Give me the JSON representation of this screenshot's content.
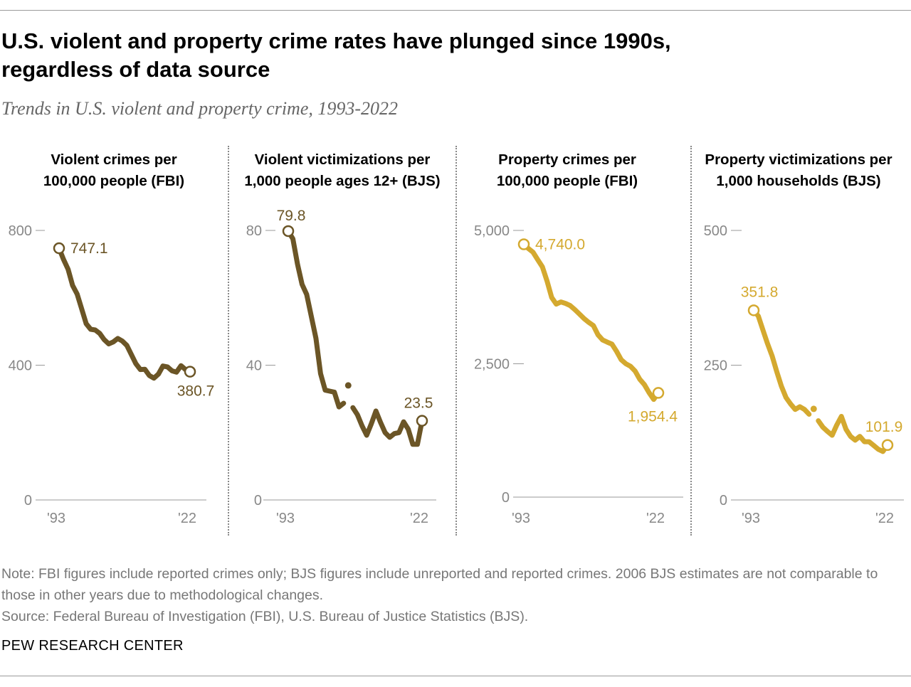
{
  "title": "U.S. violent and property crime rates have plunged since 1990s, regardless of data source",
  "subtitle": "Trends in U.S. violent and property crime, 1993-2022",
  "note": "Note: FBI figures include reported crimes only; BJS figures include unreported and reported crimes. 2006 BJS estimates are not comparable to those in other years due to methodological changes.",
  "source": "Source: Federal Bureau of Investigation (FBI), U.S. Bureau of Justice Statistics (BJS).",
  "brand": "PEW RESEARCH CENTER",
  "colors": {
    "violent": "#6b5526",
    "property": "#d4a92f",
    "axis": "#777777"
  },
  "chart_data": [
    {
      "type": "line",
      "title_line1": "Violent crimes per",
      "title_line2": "100,000 people (FBI)",
      "color": "#6b5526",
      "ylim": [
        0,
        800
      ],
      "yticks": [
        "0",
        "400",
        "800"
      ],
      "ytick_values": [
        0,
        400,
        800
      ],
      "xtick_labels": [
        "'93",
        "'22"
      ],
      "x": [
        1993,
        1994,
        1995,
        1996,
        1997,
        1998,
        1999,
        2000,
        2001,
        2002,
        2003,
        2004,
        2005,
        2006,
        2007,
        2008,
        2009,
        2010,
        2011,
        2012,
        2013,
        2014,
        2015,
        2016,
        2017,
        2018,
        2019,
        2020,
        2021,
        2022
      ],
      "values": [
        747.1,
        713.6,
        684.5,
        636.6,
        611.0,
        567.6,
        523.0,
        506.5,
        504.5,
        494.4,
        475.8,
        463.2,
        469.0,
        479.3,
        471.8,
        458.6,
        431.9,
        404.5,
        387.1,
        387.8,
        369.1,
        361.6,
        373.7,
        397.5,
        394.9,
        383.4,
        379.4,
        398.5,
        387.0,
        380.7
      ],
      "break_year": null,
      "start_label": "747.1",
      "end_label": "380.7"
    },
    {
      "type": "line",
      "title_line1": "Violent victimizations per",
      "title_line2": "1,000 people ages 12+ (BJS)",
      "color": "#6b5526",
      "ylim": [
        0,
        80
      ],
      "yticks": [
        "0",
        "40",
        "80"
      ],
      "ytick_values": [
        0,
        40,
        80
      ],
      "xtick_labels": [
        "'93",
        "'22"
      ],
      "x": [
        1993,
        1994,
        1995,
        1996,
        1997,
        1998,
        1999,
        2000,
        2001,
        2002,
        2003,
        2004,
        2005,
        2006,
        2007,
        2008,
        2009,
        2010,
        2011,
        2012,
        2013,
        2014,
        2015,
        2016,
        2017,
        2018,
        2019,
        2020,
        2021,
        2022
      ],
      "values": [
        79.8,
        77.5,
        70.0,
        64.0,
        61.0,
        54.5,
        48.0,
        37.5,
        32.6,
        32.3,
        32.0,
        27.6,
        28.7,
        34.0,
        27.4,
        25.3,
        22.0,
        19.2,
        22.6,
        26.4,
        23.0,
        20.0,
        18.6,
        19.7,
        20.0,
        23.2,
        21.0,
        16.5,
        16.5,
        23.5
      ],
      "break_year": 2006,
      "start_label": "79.8",
      "end_label": "23.5"
    },
    {
      "type": "line",
      "title_line1": "Property crimes per",
      "title_line2": "100,000 people (FBI)",
      "color": "#d4a92f",
      "ylim": [
        0,
        5000
      ],
      "yticks": [
        "0",
        "2,500",
        "5,000"
      ],
      "ytick_values": [
        0,
        2500,
        5000
      ],
      "xtick_labels": [
        "'93",
        "'22"
      ],
      "x": [
        1993,
        1994,
        1995,
        1996,
        1997,
        1998,
        1999,
        2000,
        2001,
        2002,
        2003,
        2004,
        2005,
        2006,
        2007,
        2008,
        2009,
        2010,
        2011,
        2012,
        2013,
        2014,
        2015,
        2016,
        2017,
        2018,
        2019,
        2020,
        2021,
        2022
      ],
      "values": [
        4740.0,
        4660.2,
        4590.5,
        4451.0,
        4316.3,
        4052.5,
        3743.6,
        3618.3,
        3658.1,
        3630.6,
        3591.2,
        3514.1,
        3431.5,
        3346.6,
        3276.4,
        3214.6,
        3041.3,
        2945.9,
        2905.4,
        2868.0,
        2733.6,
        2574.1,
        2500.5,
        2451.6,
        2362.2,
        2209.8,
        2109.9,
        1958.2,
        1832.3,
        1954.4
      ],
      "break_year": null,
      "start_label": "4,740.0",
      "end_label": "1,954.4"
    },
    {
      "type": "line",
      "title_line1": "Property victimizations per",
      "title_line2": "1,000 households (BJS)",
      "color": "#d4a92f",
      "ylim": [
        0,
        500
      ],
      "yticks": [
        "0",
        "250",
        "500"
      ],
      "ytick_values": [
        0,
        250,
        500
      ],
      "xtick_labels": [
        "'93",
        "'22"
      ],
      "x": [
        1993,
        1994,
        1995,
        1996,
        1997,
        1998,
        1999,
        2000,
        2001,
        2002,
        2003,
        2004,
        2005,
        2006,
        2007,
        2008,
        2009,
        2010,
        2011,
        2012,
        2013,
        2014,
        2015,
        2016,
        2017,
        2018,
        2019,
        2020,
        2021,
        2022
      ],
      "values": [
        351.8,
        341.0,
        315.0,
        290.0,
        267.0,
        238.0,
        211.0,
        190.0,
        178.0,
        168.0,
        173.0,
        168.0,
        159.0,
        169.0,
        147.0,
        135.0,
        127.0,
        120.0,
        139.0,
        155.0,
        131.0,
        118.0,
        111.0,
        118.0,
        108.0,
        108.0,
        101.0,
        94.0,
        90.0,
        101.9
      ],
      "break_year": 2006,
      "start_label": "351.8",
      "end_label": "101.9"
    }
  ]
}
